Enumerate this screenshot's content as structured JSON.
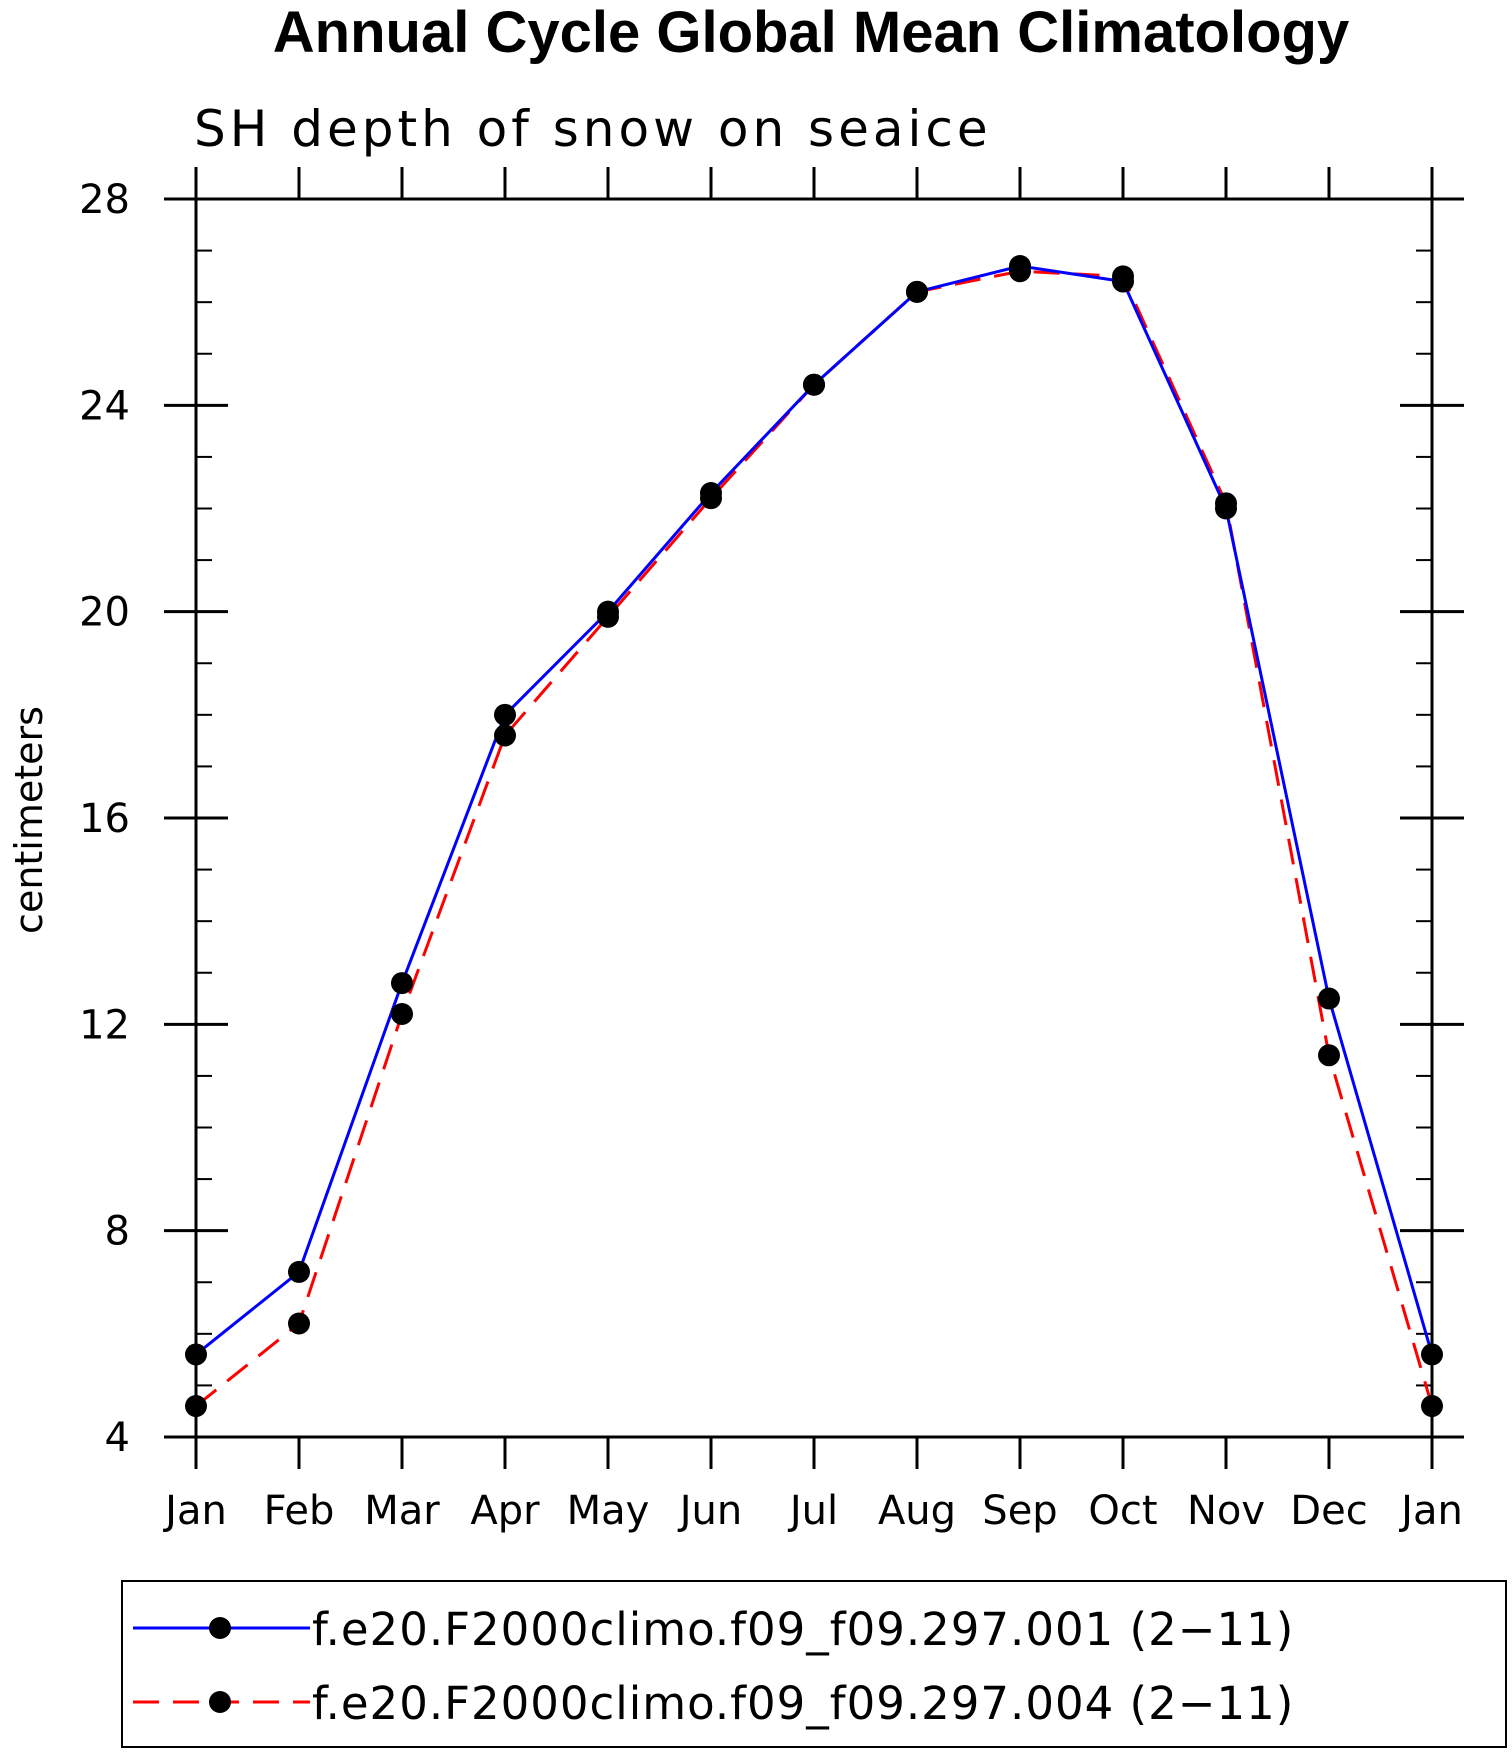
{
  "chart_data": {
    "type": "line",
    "title": "Annual Cycle Global Mean Climatology",
    "subtitle": "SH depth of snow on seaice",
    "xlabel": "",
    "ylabel": "centimeters",
    "categories": [
      "Jan",
      "Feb",
      "Mar",
      "Apr",
      "May",
      "Jun",
      "Jul",
      "Aug",
      "Sep",
      "Oct",
      "Nov",
      "Dec",
      "Jan"
    ],
    "ylim": [
      4,
      28
    ],
    "yticks": [
      4,
      8,
      12,
      16,
      20,
      24,
      28
    ],
    "grid": false,
    "legend_position": "bottom",
    "series": [
      {
        "name": "f.e20.F2000climo.f09_f09.297.001 (2−11)",
        "color": "#0000ff",
        "dash": "solid",
        "marker": "filled-circle",
        "values": [
          5.6,
          7.2,
          12.8,
          18.0,
          20.0,
          22.3,
          24.4,
          26.2,
          26.7,
          26.4,
          22.0,
          12.5,
          5.6
        ]
      },
      {
        "name": "f.e20.F2000climo.f09_f09.297.004 (2−11)",
        "color": "#ff0000",
        "dash": "dashed",
        "marker": "filled-circle",
        "values": [
          4.6,
          6.2,
          12.2,
          17.6,
          19.9,
          22.2,
          24.4,
          26.2,
          26.6,
          26.5,
          22.1,
          11.4,
          4.6
        ]
      }
    ]
  }
}
